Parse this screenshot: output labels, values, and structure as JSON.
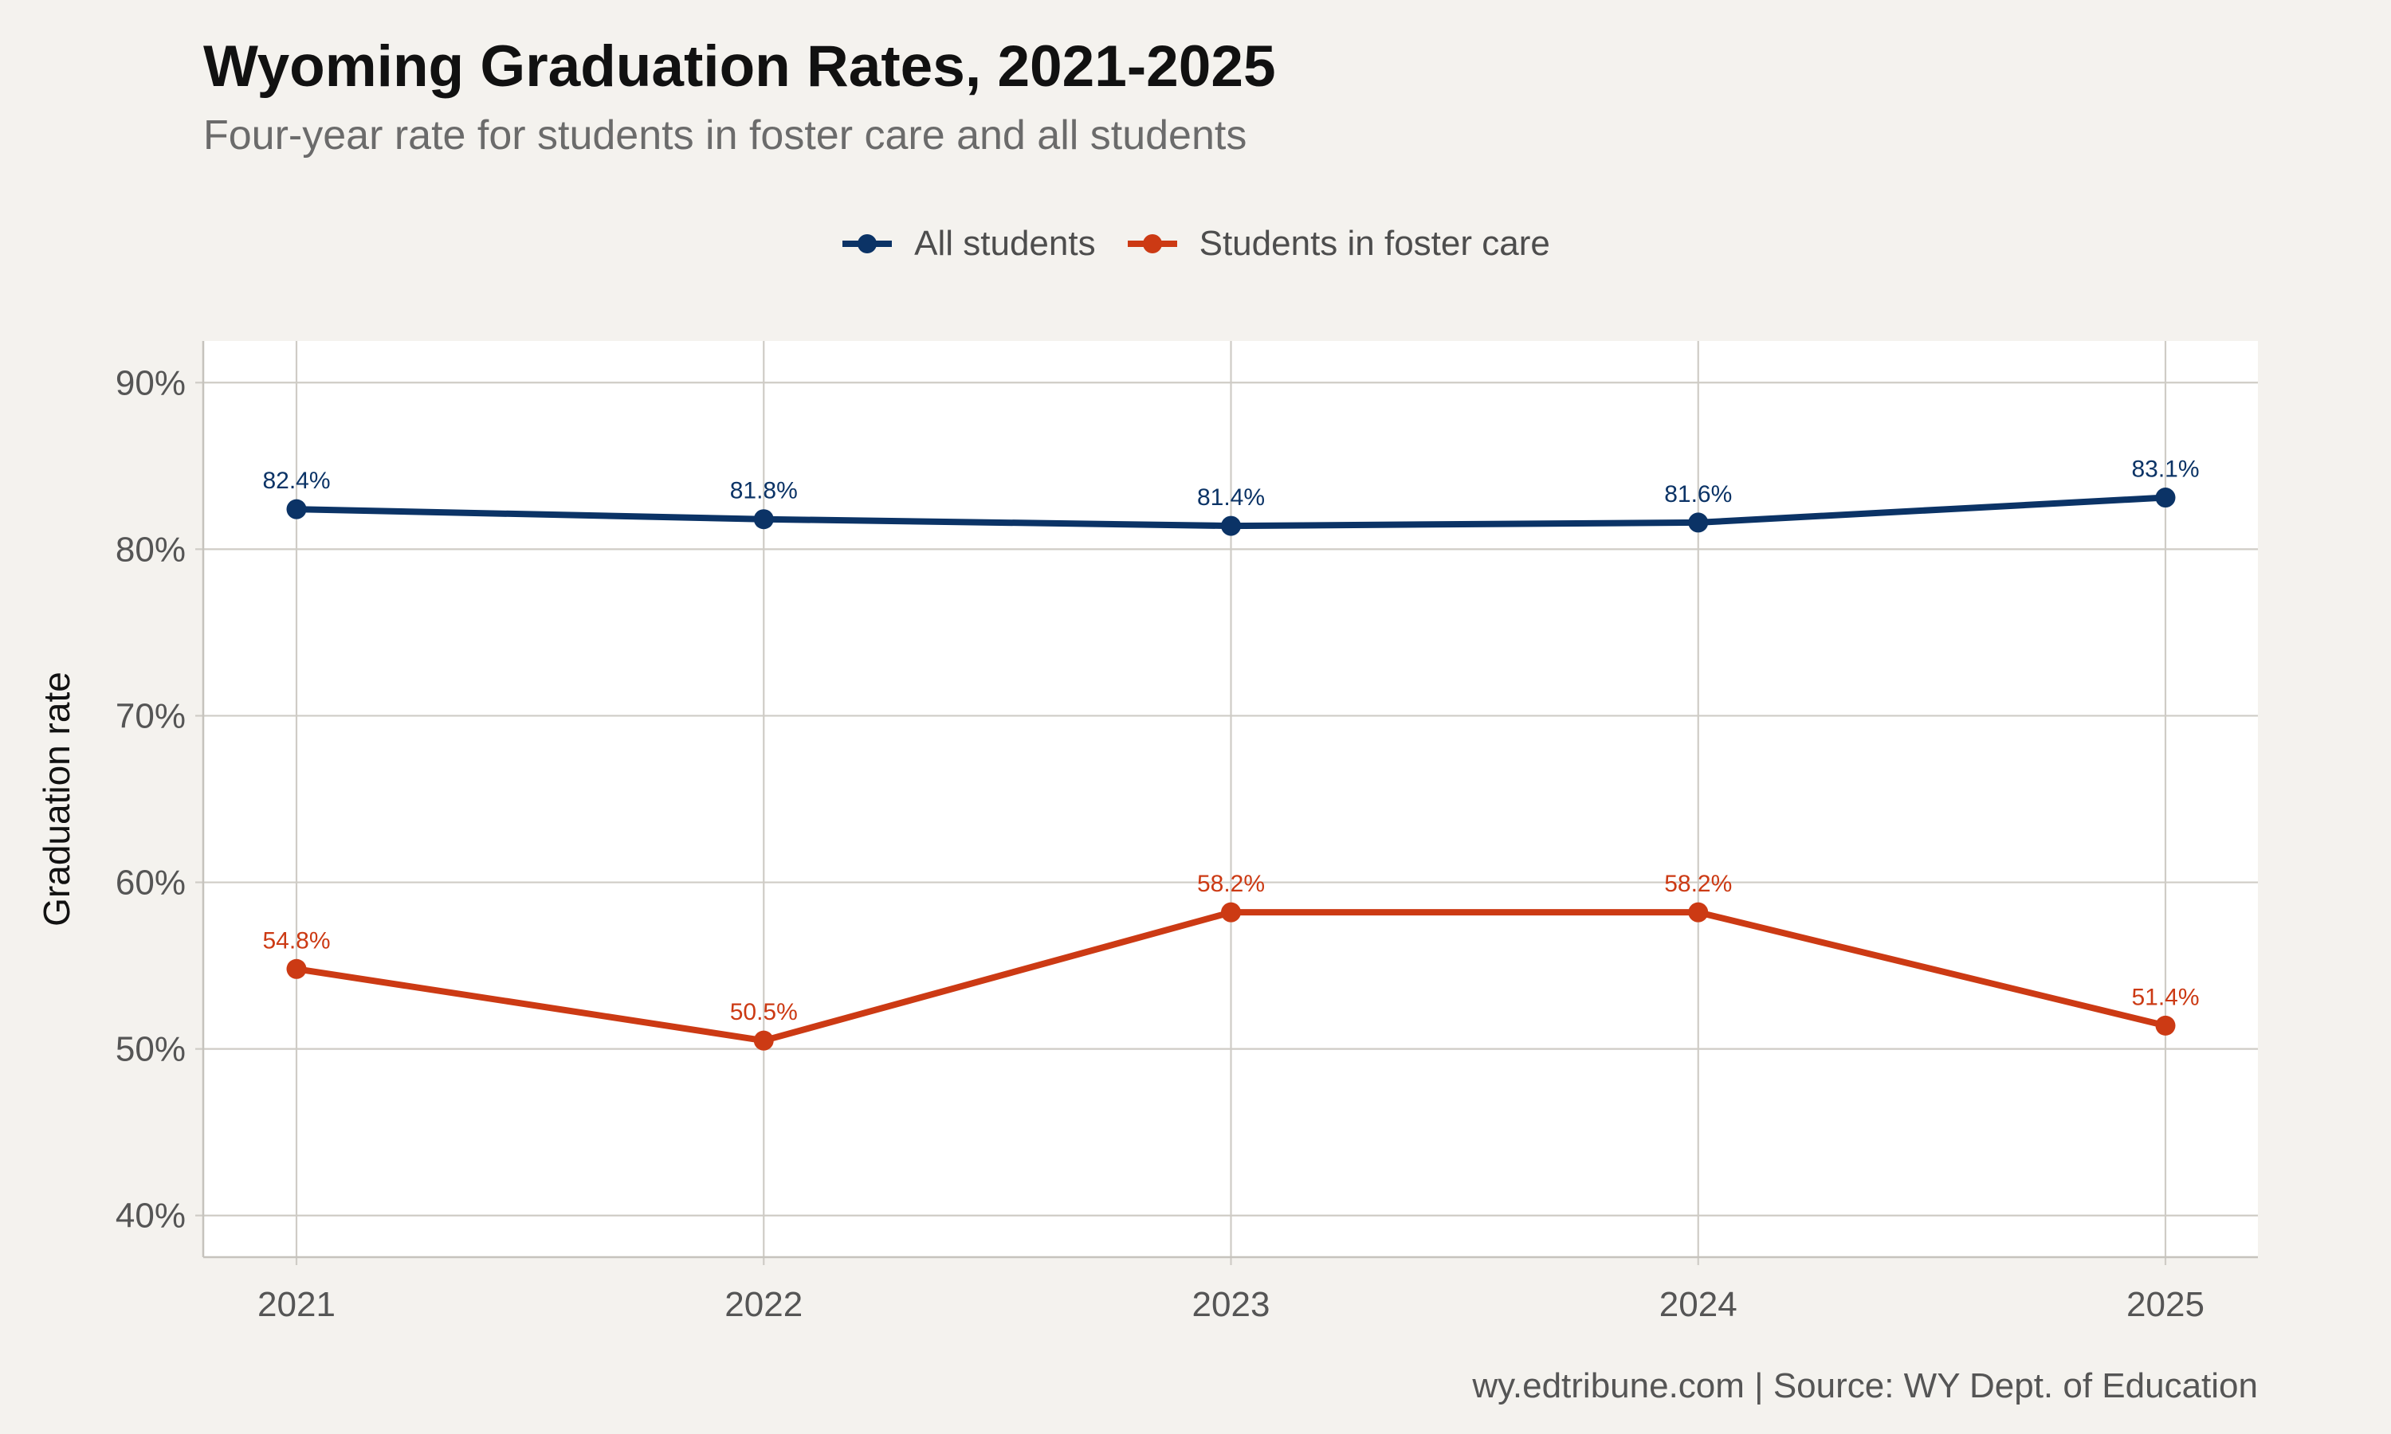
{
  "title": "Wyoming Graduation Rates, 2021-2025",
  "subtitle": "Four-year rate for students in foster care and all students",
  "caption": "wy.edtribune.com | Source: WY Dept. of Education",
  "chart_data": {
    "type": "line",
    "title": "Wyoming Graduation Rates, 2021-2025",
    "subtitle": "Four-year rate for students in foster care and all students",
    "x": [
      "2021",
      "2022",
      "2023",
      "2024",
      "2025"
    ],
    "xlabel": "",
    "ylabel": "Graduation rate",
    "ylim": [
      37.5,
      92.5
    ],
    "yticks": [
      40,
      50,
      60,
      70,
      80,
      90
    ],
    "ytick_labels": [
      "40%",
      "50%",
      "60%",
      "70%",
      "80%",
      "90%"
    ],
    "grid": true,
    "legend_position": "top-center",
    "series": [
      {
        "name": "All students",
        "color": "#0b3366",
        "values": [
          82.4,
          81.8,
          81.4,
          81.6,
          83.1
        ],
        "labels": [
          "82.4%",
          "81.8%",
          "81.4%",
          "81.6%",
          "83.1%"
        ]
      },
      {
        "name": "Students in foster care",
        "color": "#cc3a14",
        "values": [
          54.8,
          50.5,
          58.2,
          58.2,
          51.4
        ],
        "labels": [
          "54.8%",
          "50.5%",
          "58.2%",
          "58.2%",
          "51.4%"
        ]
      }
    ]
  }
}
